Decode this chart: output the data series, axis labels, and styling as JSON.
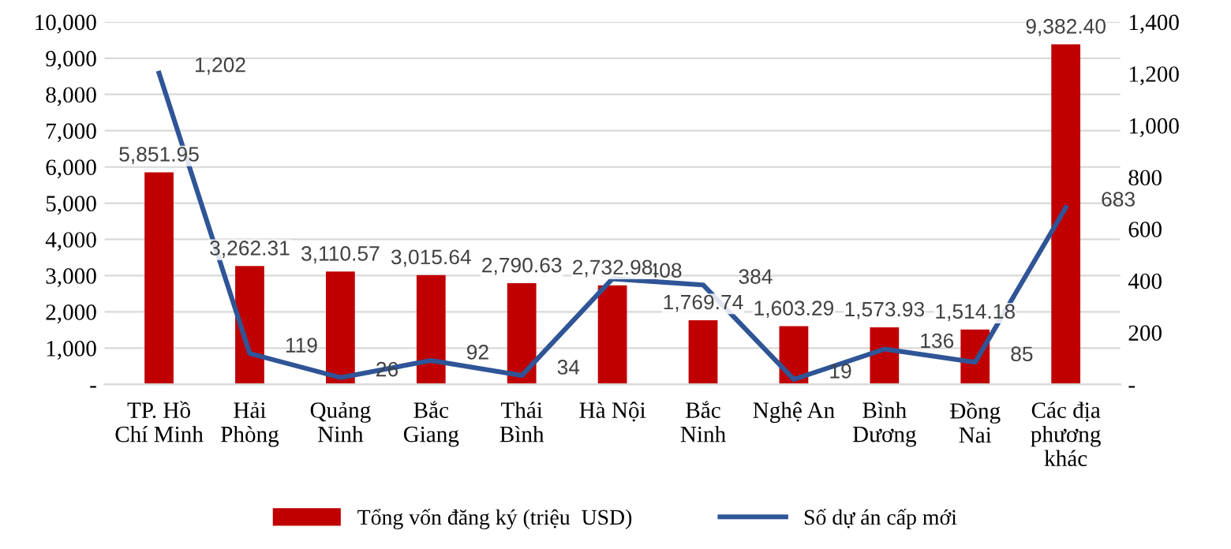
{
  "chart_data": {
    "type": "bar",
    "categories": [
      "TP. Hồ\nChí Minh",
      "Hải\nPhòng",
      "Quảng\nNinh",
      "Bắc\nGiang",
      "Thái\nBình",
      "Hà Nội",
      "Bắc\nNinh",
      "Nghệ An",
      "Bình\nDương",
      "Đồng\nNai",
      "Các địa\nphương\nkhác"
    ],
    "series": [
      {
        "name": "Tổng vốn đăng ký (triệu  USD)",
        "color": "#c00000",
        "values": [
          5851.95,
          3262.31,
          3110.57,
          3015.64,
          2790.63,
          2732.98,
          1769.74,
          1603.29,
          1573.93,
          1514.18,
          9382.4
        ],
        "value_labels": [
          "5,851.95",
          "3,262.31",
          "3,110.57",
          "3,015.64",
          "2,790.63",
          "2,732.98",
          "1,769.74",
          "1,603.29",
          "1,573.93",
          "1,514.18",
          "9,382.40"
        ]
      },
      {
        "name": "Số dự án cấp mới",
        "type": "line",
        "axis": "y2",
        "color": "#2f5597",
        "values": [
          1202,
          119,
          26,
          92,
          34,
          408,
          384,
          19,
          136,
          85,
          683
        ],
        "value_labels": [
          "1,202",
          "119",
          "26",
          "92",
          "34",
          "408",
          "384",
          "19",
          "136",
          "85",
          "683"
        ]
      }
    ],
    "ylim": [
      0,
      10000
    ],
    "yticks": [
      {
        "value": 0,
        "label": "-"
      },
      {
        "value": 1000,
        "label": "1,000"
      },
      {
        "value": 2000,
        "label": "2,000"
      },
      {
        "value": 3000,
        "label": "3,000"
      },
      {
        "value": 4000,
        "label": "4,000"
      },
      {
        "value": 5000,
        "label": "5,000"
      },
      {
        "value": 6000,
        "label": "6,000"
      },
      {
        "value": 7000,
        "label": "7,000"
      },
      {
        "value": 8000,
        "label": "8,000"
      },
      {
        "value": 9000,
        "label": "9,000"
      },
      {
        "value": 10000,
        "label": "10,000"
      }
    ],
    "y2lim": [
      0,
      1400
    ],
    "y2ticks": [
      {
        "value": 0,
        "label": "-"
      },
      200,
      400,
      600,
      800,
      {
        "value": 1000,
        "label": "1,000"
      },
      {
        "value": 1200,
        "label": "1,200"
      },
      {
        "value": 1400,
        "label": "1,400"
      }
    ],
    "grid": "y",
    "legend": "bottom",
    "marker": "none",
    "line_style": "solid"
  }
}
